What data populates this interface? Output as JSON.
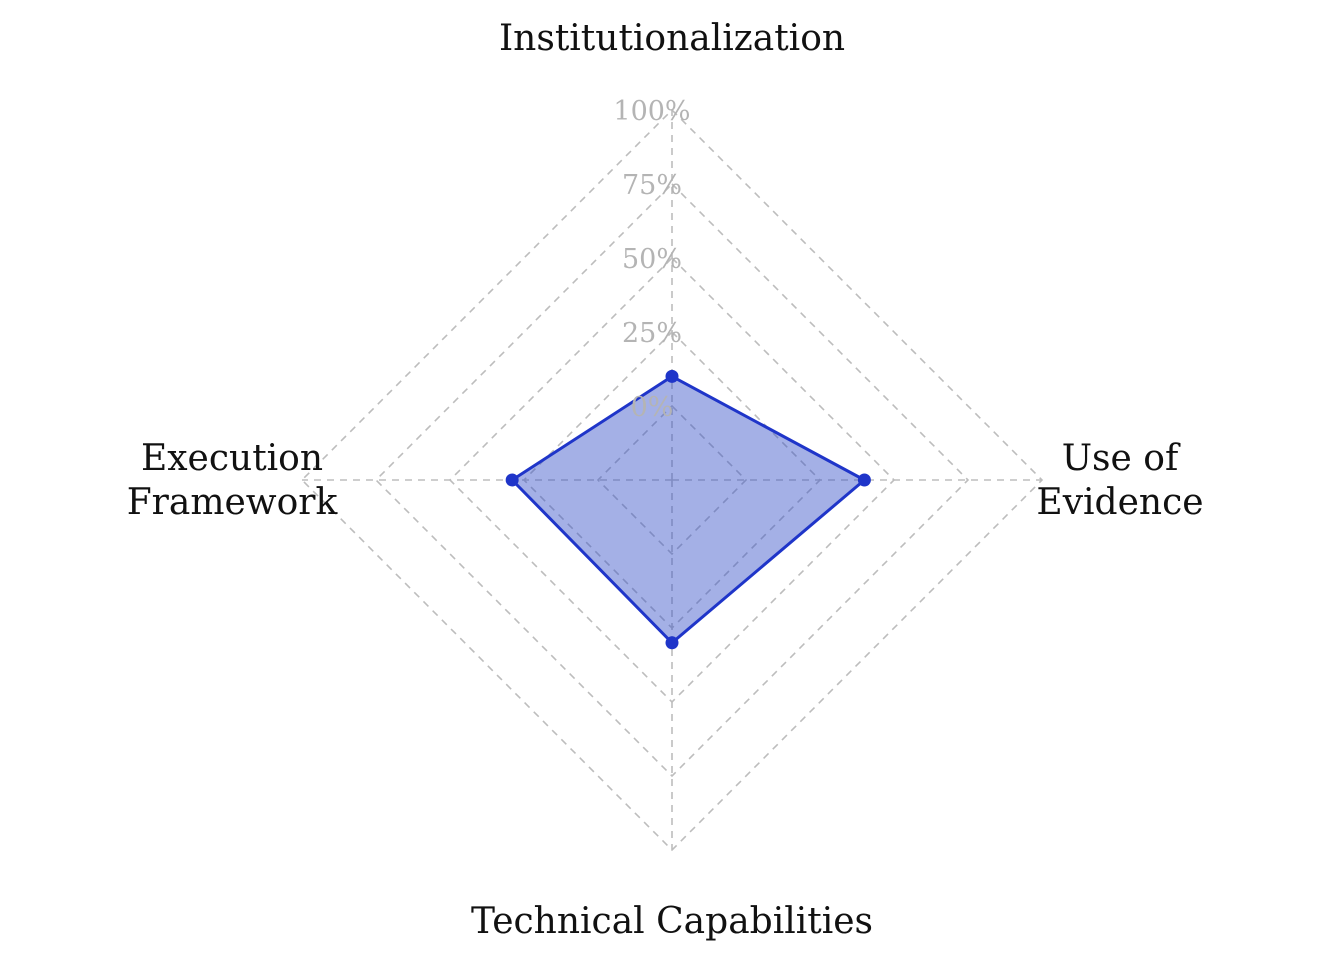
{
  "chart_data": {
    "type": "radar",
    "axes": [
      {
        "label_lines": [
          "Institutionalization"
        ]
      },
      {
        "label_lines": [
          "Use of",
          "Evidence"
        ]
      },
      {
        "label_lines": [
          "Technical Capabilities"
        ]
      },
      {
        "label_lines": [
          "Execution",
          "Framework"
        ]
      }
    ],
    "rtick_values": [
      0,
      25,
      50,
      75,
      100
    ],
    "rtick_labels": [
      "0%",
      "25%",
      "50%",
      "75%",
      "100%"
    ],
    "rlim": [
      0,
      100
    ],
    "series": [
      {
        "values": [
          10,
          40,
          30,
          29
        ]
      }
    ],
    "grid": true,
    "colors": {
      "fill": "#3550c8",
      "line": "#1f35c9",
      "grid": "#bdbdbd",
      "tick": "#b4b4b4"
    }
  }
}
